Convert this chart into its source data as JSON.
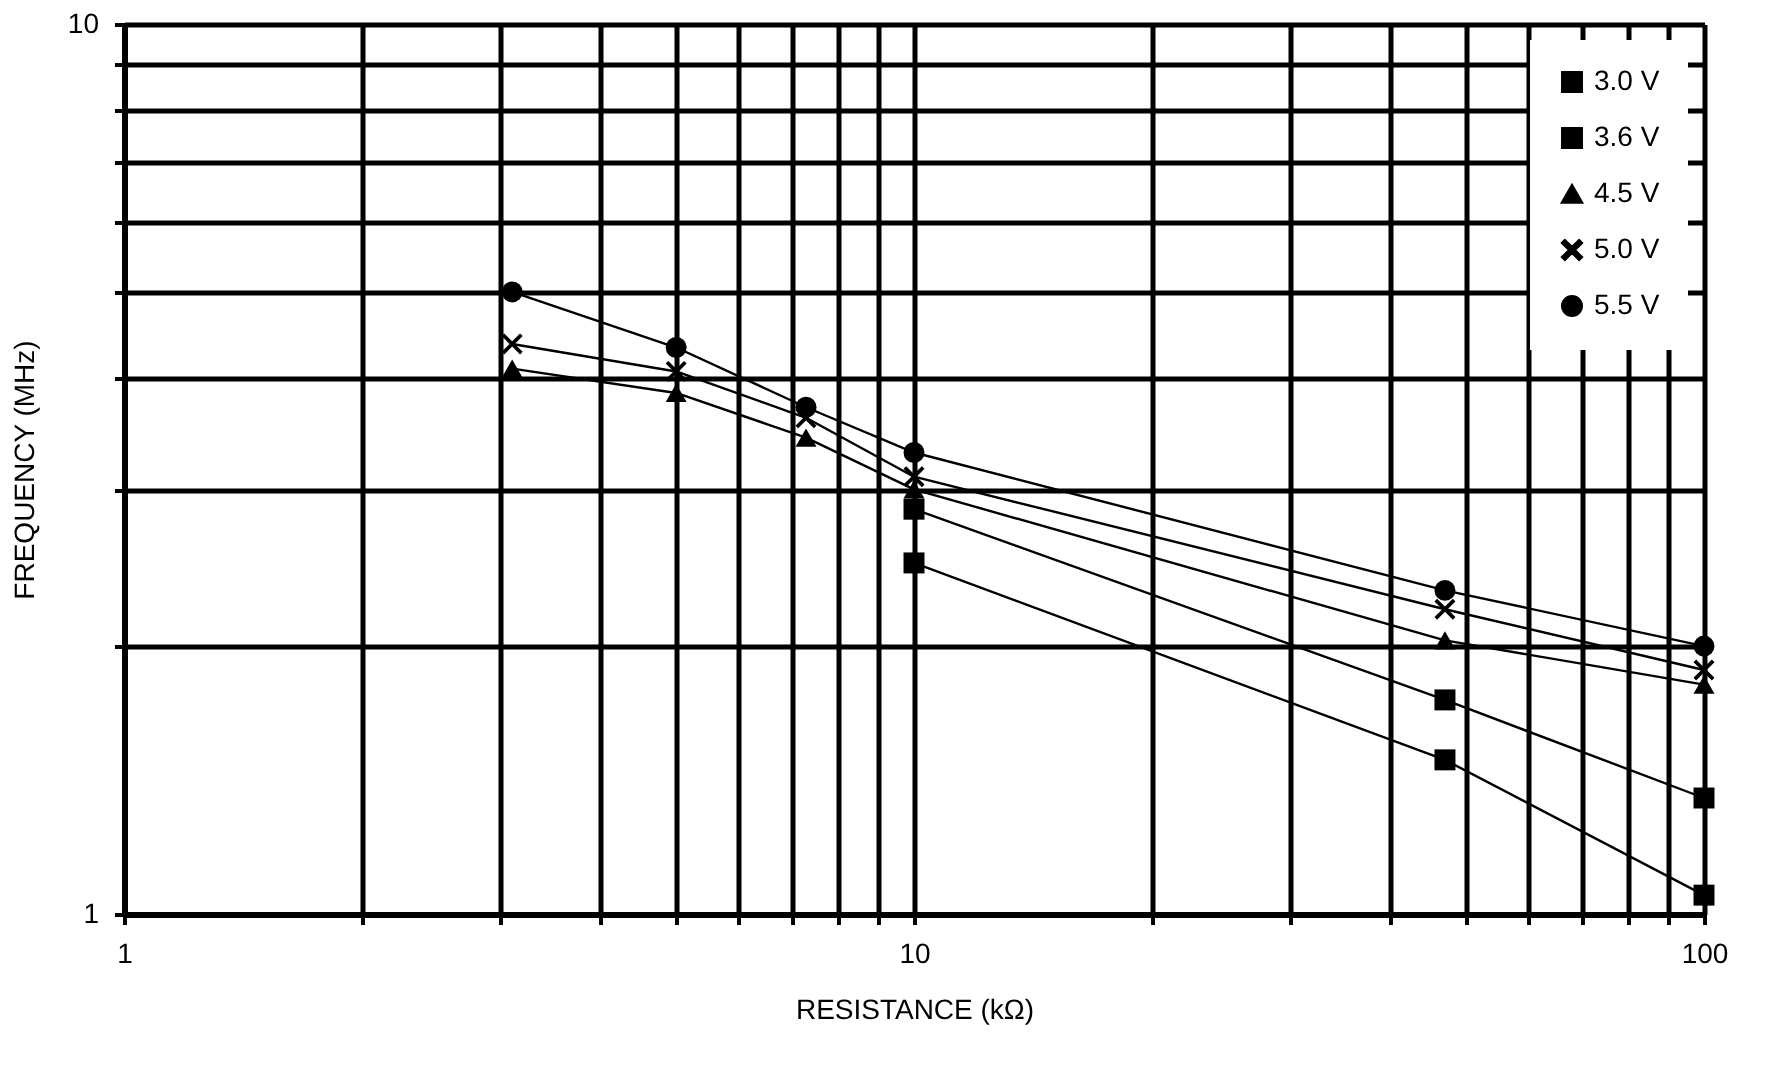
{
  "chart_data": {
    "type": "line",
    "xlabel": "RESISTANCE (kΩ)",
    "ylabel": "FREQUENCY (MHz)",
    "log": "xy",
    "xlim": [
      1,
      100
    ],
    "ylim": [
      1,
      10
    ],
    "xticks": [
      1,
      {
        "value": 2,
        "label": null
      },
      {
        "value": 3,
        "label": null
      },
      {
        "value": 4,
        "label": null
      },
      {
        "value": 5,
        "label": null
      },
      {
        "value": 6,
        "label": null
      },
      {
        "value": 7,
        "label": null
      },
      {
        "value": 8,
        "label": null
      },
      {
        "value": 9,
        "label": null
      },
      10,
      {
        "value": 20,
        "label": null
      },
      {
        "value": 30,
        "label": null
      },
      {
        "value": 40,
        "label": null
      },
      {
        "value": 50,
        "label": null
      },
      {
        "value": 60,
        "label": null
      },
      {
        "value": 70,
        "label": null
      },
      {
        "value": 80,
        "label": null
      },
      {
        "value": 90,
        "label": null
      },
      100
    ],
    "yticks": [
      1,
      {
        "value": 2,
        "label": null
      },
      {
        "value": 3,
        "label": null
      },
      {
        "value": 4,
        "label": null
      },
      {
        "value": 5,
        "label": null
      },
      {
        "value": 6,
        "label": null
      },
      {
        "value": 7,
        "label": null
      },
      {
        "value": 8,
        "label": null
      },
      {
        "value": 9,
        "label": null
      },
      10
    ],
    "grid": true,
    "legend": "top right",
    "line_style": "solid",
    "series": [
      {
        "name": "3.0 V",
        "color": "#000000",
        "marker": "square",
        "x": [
          10,
          47,
          100
        ],
        "values": [
          2.48,
          1.49,
          1.05
        ]
      },
      {
        "name": "3.6 V",
        "color": "#000000",
        "marker": "square",
        "x": [
          10,
          47,
          100
        ],
        "values": [
          2.85,
          1.74,
          1.35
        ]
      },
      {
        "name": "4.5 V",
        "color": "#000000",
        "marker": "triangle",
        "x": [
          3.1,
          5,
          7.3,
          10,
          47,
          100
        ],
        "values": [
          4.1,
          3.85,
          3.43,
          3.0,
          2.03,
          1.81
        ]
      },
      {
        "name": "5.0 V",
        "color": "#000000",
        "marker": "cross",
        "x": [
          3.1,
          5,
          7.3,
          10,
          47,
          100
        ],
        "values": [
          4.37,
          4.07,
          3.61,
          3.1,
          2.2,
          1.88
        ]
      },
      {
        "name": "5.5 V",
        "color": "#000000",
        "marker": "circle",
        "x": [
          3.1,
          5,
          7.3,
          10,
          47,
          100
        ],
        "values": [
          5.0,
          4.33,
          3.71,
          3.3,
          2.31,
          2.0
        ]
      }
    ]
  }
}
